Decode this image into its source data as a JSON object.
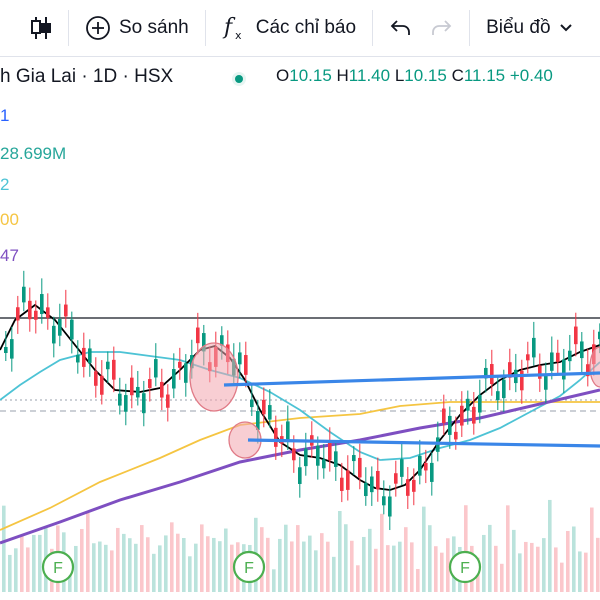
{
  "toolbar": {
    "compare_label": "So sánh",
    "indicators_label": "Các chỉ báo",
    "chart_type_label": "Biểu đồ"
  },
  "legend": {
    "symbol_text": "h Gia Lai · 1D · HSX",
    "open_key": "O",
    "open": "10.15",
    "high_key": "H",
    "high": "11.40",
    "low_key": "L",
    "low": "10.15",
    "close_key": "C",
    "close": "11.15",
    "change": "+0.40",
    "ind1": "1",
    "ind2": "28.699M",
    "ind3": "2",
    "ind4": "00",
    "ind5": "47"
  },
  "colors": {
    "up": "#089981",
    "down": "#f23645",
    "ma_black": "#000000",
    "ma_teal": "#4dc3d5",
    "ma_yellow": "#f5c542",
    "ma_purple": "#7e4fc1",
    "annotation_line": "#3a86e8",
    "annotation_ellipse": "#f2a6ae",
    "ind1_color": "#2962ff",
    "ind2_color": "#26a69a",
    "ind3_color": "#4dc3d5",
    "ind4_color": "#f5c542",
    "ind5_color": "#7e4fc1",
    "event_marker": "#4caf50"
  },
  "event_marker_label": "F",
  "chart_data": {
    "type": "candlestick",
    "symbol": "Gia Lai",
    "interval": "1D",
    "exchange": "HSX",
    "volume": "28.699M",
    "overlays": [
      "MA (black)",
      "MA (teal)",
      "MA (yellow)",
      "MA (purple)"
    ]
  }
}
